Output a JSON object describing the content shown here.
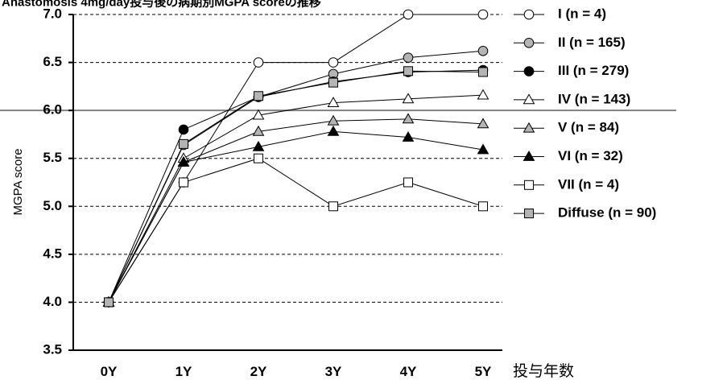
{
  "chart_data": {
    "type": "line",
    "title": "Anastomosis 4mg/day投与後の病期別MGPA scoreの推移",
    "xlabel": "投与年数",
    "ylabel": "MGPA score",
    "categories": [
      "0Y",
      "1Y",
      "2Y",
      "3Y",
      "4Y",
      "5Y"
    ],
    "ylim": [
      3.5,
      7.0
    ],
    "yticks": [
      "3.5",
      "4.0",
      "4.5",
      "5.0",
      "5.5",
      "6.0",
      "6.5",
      "7.0"
    ],
    "reference_line": 6.0,
    "grid": "horizontal dashed",
    "legend_position": "right",
    "series": [
      {
        "name": "I (n = 4)",
        "marker": "circle",
        "fill": "#ffffff",
        "values": [
          4.0,
          5.25,
          6.5,
          6.5,
          7.0,
          7.0
        ]
      },
      {
        "name": "II (n = 165)",
        "marker": "circle",
        "fill": "#b4b4b4",
        "values": [
          4.0,
          5.64,
          6.14,
          6.38,
          6.55,
          6.62
        ]
      },
      {
        "name": "III (n = 279)",
        "marker": "circle",
        "fill": "#000000",
        "values": [
          4.0,
          5.8,
          6.14,
          6.3,
          6.4,
          6.42
        ]
      },
      {
        "name": "IV (n = 143)",
        "marker": "triangle",
        "fill": "#ffffff",
        "values": [
          4.0,
          5.5,
          5.95,
          6.08,
          6.12,
          6.16
        ]
      },
      {
        "name": "V (n = 84)",
        "marker": "triangle",
        "fill": "#b4b4b4",
        "values": [
          4.0,
          5.46,
          5.78,
          5.89,
          5.91,
          5.86
        ]
      },
      {
        "name": "VI (n = 32)",
        "marker": "triangle",
        "fill": "#000000",
        "values": [
          4.0,
          5.46,
          5.62,
          5.78,
          5.72,
          5.59
        ]
      },
      {
        "name": "VII (n = 4)",
        "marker": "square",
        "fill": "#ffffff",
        "values": [
          4.0,
          5.25,
          5.5,
          5.0,
          5.25,
          5.0
        ]
      },
      {
        "name": "Diffuse (n = 90)",
        "marker": "square",
        "fill": "#b4b4b4",
        "values": [
          4.0,
          5.65,
          6.15,
          6.29,
          6.41,
          6.4
        ]
      }
    ]
  }
}
